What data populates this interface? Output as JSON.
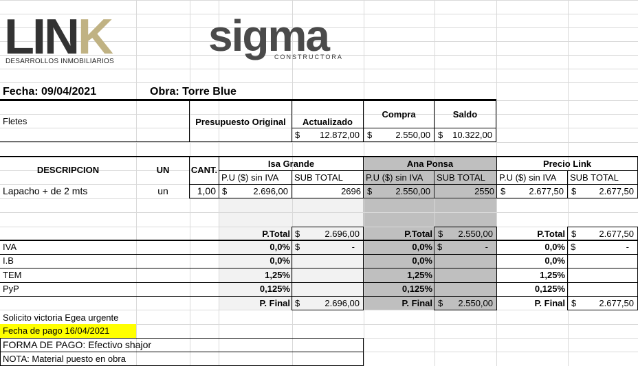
{
  "logos": {
    "link_main_ln": "LIN",
    "link_main_k": "K",
    "link_sub": "DESARROLLOS INMOBILIARIOS",
    "sigma_main": "sigma",
    "sigma_sub": "CONSTRUCTORA"
  },
  "header": {
    "fecha": "Fecha: 09/04/2021",
    "obra": "Obra:  Torre Blue"
  },
  "summary": {
    "fletes": "Fletes",
    "presupuesto_original": "Presupuesto Original",
    "actualizado": "Actualizado",
    "compra": "Compra",
    "saldo": "Saldo",
    "currency": "$",
    "actualizado_value": "12.872,00",
    "compra_value": "2.550,00",
    "saldo_value": "10.322,00"
  },
  "quote": {
    "col_descripcion": "DESCRIPCION",
    "col_un": "UN",
    "col_cant": "CANT.",
    "vendors": [
      "Isa Grande",
      "Ana Ponsa",
      "Precio Link"
    ],
    "sub_pu": "P.U ($) sin IVA",
    "sub_subtotal": "SUB TOTAL",
    "item": {
      "descripcion": "Lapacho + de 2 mts",
      "un": "un",
      "cant": "1,00",
      "isa_pu": "2.696,00",
      "isa_sub": "2696",
      "ana_pu": "2.550,00",
      "ana_sub": "2550",
      "link_pu": "2.677,50",
      "link_sub": "2.677,50"
    },
    "ptotal_label": "P.Total",
    "pfinal_label": "P. Final",
    "currency": "$",
    "dash": "-",
    "ptotal": [
      "2.696,00",
      "2.550,00",
      "2.677,50"
    ],
    "pfinal": [
      "2.696,00",
      "2.550,00",
      "2.677,50"
    ],
    "taxes": [
      {
        "label": "IVA",
        "pct": "0,0%"
      },
      {
        "label": "I.B",
        "pct": "0,0%"
      },
      {
        "label": "TEM",
        "pct": "1,25%"
      },
      {
        "label": "PyP",
        "pct": "0,125%"
      }
    ]
  },
  "notes": {
    "solicito": "Solicito victoria Egea urgente",
    "fecha_pago": "Fecha de pago 16/04/2021",
    "forma_pago": "FORMA DE PAGO: Efectivo shajor",
    "nota": "NOTA: Material puesto en obra"
  },
  "colors": {
    "gridline": "#d9d9d9",
    "shade_light": "#f2f2f2",
    "shade_dark": "#bfbfbf",
    "highlight": "#ffff00",
    "link_gold": "#c0b283"
  }
}
